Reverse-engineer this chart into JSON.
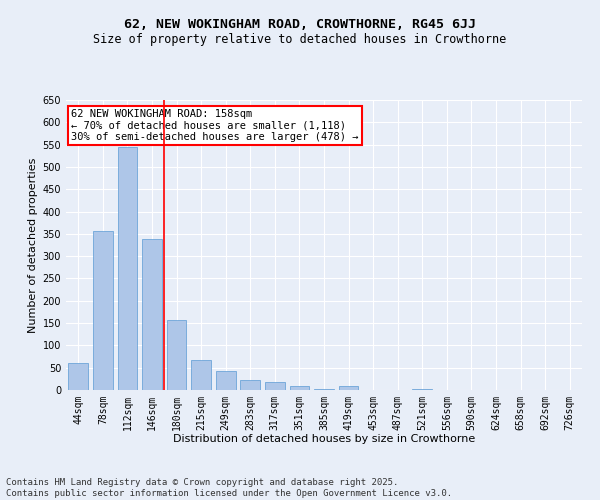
{
  "title": "62, NEW WOKINGHAM ROAD, CROWTHORNE, RG45 6JJ",
  "subtitle": "Size of property relative to detached houses in Crowthorne",
  "xlabel": "Distribution of detached houses by size in Crowthorne",
  "ylabel": "Number of detached properties",
  "categories": [
    "44sqm",
    "78sqm",
    "112sqm",
    "146sqm",
    "180sqm",
    "215sqm",
    "249sqm",
    "283sqm",
    "317sqm",
    "351sqm",
    "385sqm",
    "419sqm",
    "453sqm",
    "487sqm",
    "521sqm",
    "556sqm",
    "590sqm",
    "624sqm",
    "658sqm",
    "692sqm",
    "726sqm"
  ],
  "values": [
    60,
    357,
    545,
    338,
    158,
    68,
    42,
    23,
    18,
    8,
    2,
    8,
    0,
    0,
    2,
    0,
    0,
    0,
    0,
    0,
    1
  ],
  "bar_color": "#aec6e8",
  "bar_edge_color": "#5b9bd5",
  "vline_x": 3.5,
  "vline_color": "red",
  "annotation_text": "62 NEW WOKINGHAM ROAD: 158sqm\n← 70% of detached houses are smaller (1,118)\n30% of semi-detached houses are larger (478) →",
  "annotation_box_color": "white",
  "annotation_box_edge_color": "red",
  "ylim": [
    0,
    650
  ],
  "yticks": [
    0,
    50,
    100,
    150,
    200,
    250,
    300,
    350,
    400,
    450,
    500,
    550,
    600,
    650
  ],
  "bg_color": "#e8eef8",
  "plot_bg_color": "#e8eef8",
  "footer": "Contains HM Land Registry data © Crown copyright and database right 2025.\nContains public sector information licensed under the Open Government Licence v3.0.",
  "title_fontsize": 9.5,
  "subtitle_fontsize": 8.5,
  "xlabel_fontsize": 8,
  "ylabel_fontsize": 8,
  "tick_fontsize": 7,
  "annotation_fontsize": 7.5,
  "footer_fontsize": 6.5
}
